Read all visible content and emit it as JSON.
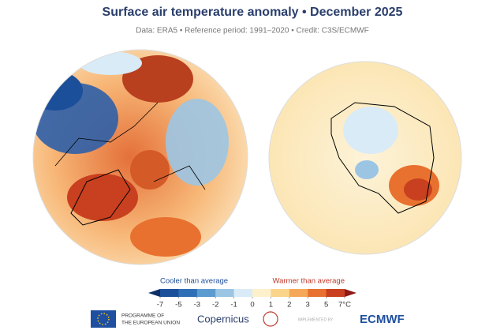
{
  "header": {
    "title": "Surface air temperature anomaly • December 2025",
    "subtitle": "Data: ERA5 • Reference period: 1991–2020 • Credit: C3S/ECMWF"
  },
  "colorbar": {
    "cool_label": "Cooler than average",
    "warm_label": "Warmer than average",
    "cool_color": "#1f4e99",
    "warm_color": "#c0392b",
    "ticks": [
      -7,
      -5,
      -3,
      -2,
      -1,
      0,
      1,
      2,
      3,
      5,
      {
        "value": 7,
        "label": "7°C"
      }
    ],
    "colors": [
      "#0b2e66",
      "#1c4f99",
      "#2f6fb5",
      "#5b9bd0",
      "#9cc5e4",
      "#d9ebf6",
      "#fdf1cc",
      "#fbd48c",
      "#f6a85a",
      "#e8712f",
      "#c8401f",
      "#8e1a16"
    ]
  },
  "footer": {
    "eu": [
      "PROGRAMME OF",
      "THE EUROPEAN UNION"
    ],
    "copernicus": "Copernicus",
    "implemented": "IMPLEMENTED BY",
    "ecmwf": "ECMWF"
  }
}
